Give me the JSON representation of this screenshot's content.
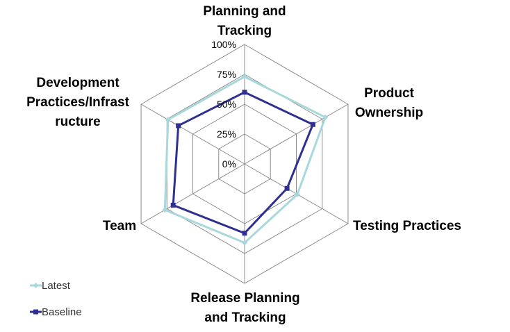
{
  "chart_data": {
    "type": "radar",
    "axes": [
      [
        "Planning and",
        "Tracking"
      ],
      [
        "Product",
        "Ownership"
      ],
      [
        "Testing Practices"
      ],
      [
        "Release Planning",
        "and Tracking"
      ],
      [
        "Team"
      ],
      [
        "Development",
        "Practices/Infrast",
        "ructure"
      ]
    ],
    "ticks": [
      "0%",
      "25%",
      "50%",
      "75%",
      "100%"
    ],
    "range": [
      0,
      100
    ],
    "series": [
      {
        "name": "Latest",
        "color": "#a8d8dc",
        "marker": "diamond",
        "values": [
          73,
          78,
          51,
          66,
          77,
          74
        ]
      },
      {
        "name": "Baseline",
        "color": "#2e2f8f",
        "marker": "square",
        "values": [
          60,
          66,
          41,
          58,
          69,
          64
        ]
      }
    ],
    "legend": "bottom-left",
    "grid": true
  }
}
